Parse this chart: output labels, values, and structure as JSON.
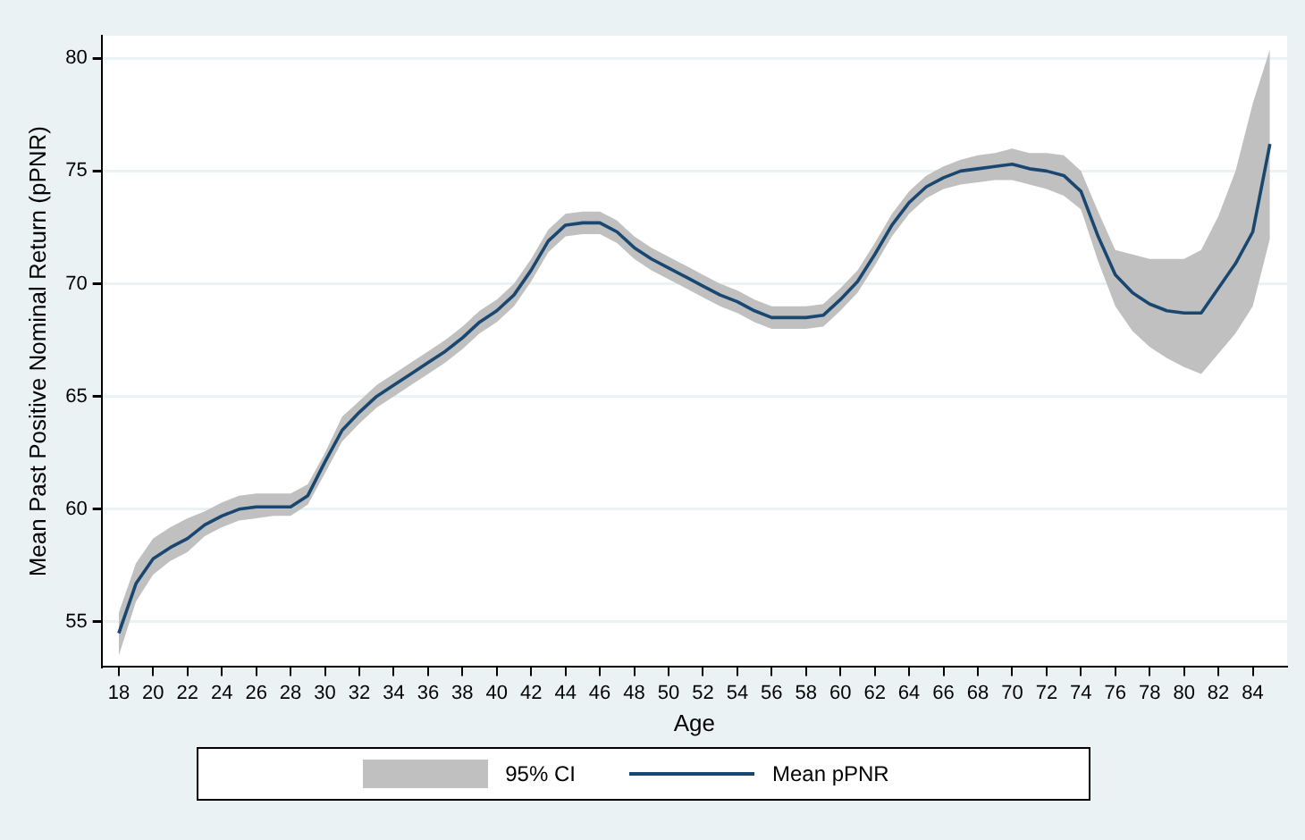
{
  "chart_data": {
    "type": "line",
    "xlabel": "Age",
    "ylabel": "Mean Past Positive Nominal Return (pPNR)",
    "annotations": [
      "95% CI"
    ],
    "x": [
      18,
      19,
      20,
      21,
      22,
      23,
      24,
      25,
      26,
      27,
      28,
      29,
      30,
      31,
      32,
      33,
      34,
      35,
      36,
      37,
      38,
      39,
      40,
      41,
      42,
      43,
      44,
      45,
      46,
      47,
      48,
      49,
      50,
      51,
      52,
      53,
      54,
      55,
      56,
      57,
      58,
      59,
      60,
      61,
      62,
      63,
      64,
      65,
      66,
      67,
      68,
      69,
      70,
      71,
      72,
      73,
      74,
      75,
      76,
      77,
      78,
      79,
      80,
      81,
      82,
      83,
      84,
      85
    ],
    "series": [
      {
        "name": "Mean pPNR",
        "color": "#1a476f",
        "values": [
          54.5,
          56.7,
          57.8,
          58.3,
          58.7,
          59.3,
          59.7,
          60.0,
          60.1,
          60.1,
          60.1,
          60.6,
          62.1,
          63.5,
          64.3,
          65.0,
          65.5,
          66.0,
          66.5,
          67.0,
          67.6,
          68.3,
          68.8,
          69.5,
          70.6,
          71.9,
          72.6,
          72.7,
          72.7,
          72.3,
          71.6,
          71.1,
          70.7,
          70.3,
          69.9,
          69.5,
          69.2,
          68.8,
          68.5,
          68.5,
          68.5,
          68.6,
          69.3,
          70.1,
          71.3,
          72.6,
          73.6,
          74.3,
          74.7,
          75.0,
          75.1,
          75.2,
          75.3,
          75.1,
          75.0,
          74.8,
          74.1,
          72.1,
          70.4,
          69.6,
          69.1,
          68.8,
          68.7,
          68.7,
          69.8,
          70.9,
          72.3,
          76.2
        ],
        "lower": [
          53.5,
          55.9,
          57.1,
          57.7,
          58.1,
          58.8,
          59.2,
          59.5,
          59.6,
          59.7,
          59.7,
          60.2,
          61.6,
          63.0,
          63.8,
          64.5,
          65.0,
          65.5,
          66.0,
          66.5,
          67.1,
          67.8,
          68.3,
          69.0,
          70.1,
          71.4,
          72.1,
          72.2,
          72.2,
          71.8,
          71.1,
          70.6,
          70.2,
          69.8,
          69.4,
          69.0,
          68.7,
          68.3,
          68.0,
          68.0,
          68.0,
          68.1,
          68.8,
          69.6,
          70.8,
          72.1,
          73.1,
          73.8,
          74.2,
          74.4,
          74.5,
          74.6,
          74.6,
          74.4,
          74.2,
          73.9,
          73.3,
          71.0,
          69.0,
          67.9,
          67.2,
          66.7,
          66.3,
          66.0,
          66.9,
          67.8,
          69.0,
          72.0
        ],
        "upper": [
          55.4,
          57.6,
          58.7,
          59.2,
          59.6,
          59.9,
          60.3,
          60.6,
          60.7,
          60.7,
          60.7,
          61.1,
          62.5,
          64.1,
          64.8,
          65.5,
          66.0,
          66.5,
          67.0,
          67.5,
          68.1,
          68.8,
          69.3,
          70.0,
          71.1,
          72.4,
          73.1,
          73.2,
          73.2,
          72.8,
          72.1,
          71.6,
          71.2,
          70.8,
          70.4,
          70.0,
          69.7,
          69.3,
          69.0,
          69.0,
          69.0,
          69.1,
          69.8,
          70.6,
          71.8,
          73.1,
          74.1,
          74.8,
          75.2,
          75.5,
          75.7,
          75.8,
          76.0,
          75.8,
          75.8,
          75.7,
          75.0,
          73.2,
          71.5,
          71.3,
          71.1,
          71.1,
          71.1,
          71.5,
          73.0,
          75.0,
          78.0,
          80.4
        ]
      }
    ],
    "xlim": [
      17,
      86
    ],
    "xticks": [
      18,
      20,
      22,
      24,
      26,
      28,
      30,
      32,
      34,
      36,
      38,
      40,
      42,
      44,
      46,
      48,
      50,
      52,
      54,
      56,
      58,
      60,
      62,
      64,
      66,
      68,
      70,
      72,
      74,
      76,
      78,
      80,
      82,
      84
    ],
    "ylim": [
      53,
      81
    ],
    "yticks": [
      55,
      60,
      65,
      70,
      75,
      80
    ],
    "grid": "y",
    "legend": "bottom",
    "marker": "none"
  }
}
